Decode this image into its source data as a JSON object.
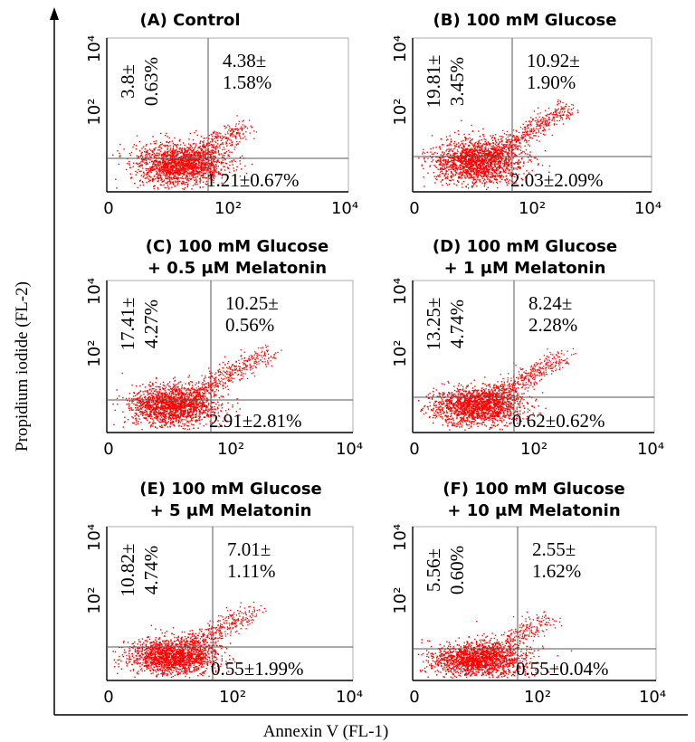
{
  "figure": {
    "ylabel": "Propidium iodide (FL-2)",
    "xlabel": "Annexin V (FL-1)"
  },
  "chart_data": [
    {
      "type": "scatter",
      "title": [
        "(A) Control"
      ],
      "x_ticks": [
        "0",
        "10²",
        "10⁴"
      ],
      "y_ticks": [
        "10²",
        "10⁴"
      ],
      "quadrants": {
        "upper_left": [
          "3.8±",
          "0.63%"
        ],
        "upper_right": [
          "4.38±",
          "1.58%"
        ],
        "lower_right": "1.21±0.67%"
      }
    },
    {
      "type": "scatter",
      "title": [
        "(B) 100 mM Glucose"
      ],
      "x_ticks": [
        "0",
        "10²",
        "10⁴"
      ],
      "y_ticks": [
        "10²",
        "10⁴"
      ],
      "quadrants": {
        "upper_left": [
          "19.81±",
          "3.45%"
        ],
        "upper_right": [
          "10.92±",
          "1.90%"
        ],
        "lower_right": "2.03±2.09%"
      }
    },
    {
      "type": "scatter",
      "title": [
        "(C) 100 mM Glucose",
        "+ 0.5 μM Melatonin"
      ],
      "x_ticks": [
        "0",
        "10²",
        "10⁴"
      ],
      "y_ticks": [
        "10²",
        "10⁴"
      ],
      "quadrants": {
        "upper_left": [
          "17.41±",
          "4.27%"
        ],
        "upper_right": [
          "10.25±",
          "0.56%"
        ],
        "lower_right": "2.91±2.81%"
      }
    },
    {
      "type": "scatter",
      "title": [
        "(D) 100 mM Glucose",
        "+ 1 μM Melatonin"
      ],
      "x_ticks": [
        "0",
        "10²",
        "10⁴"
      ],
      "y_ticks": [
        "10²",
        "10⁴"
      ],
      "quadrants": {
        "upper_left": [
          "13.25±",
          "4.74%"
        ],
        "upper_right": [
          "8.24±",
          "2.28%"
        ],
        "lower_right": "0.62±0.62%"
      }
    },
    {
      "type": "scatter",
      "title": [
        "(E) 100 mM Glucose",
        "+ 5 μM Melatonin"
      ],
      "x_ticks": [
        "0",
        "10²",
        "10⁴"
      ],
      "y_ticks": [
        "10²",
        "10⁴"
      ],
      "quadrants": {
        "upper_left": [
          "10.82±",
          "4.74%"
        ],
        "upper_right": [
          "7.01±",
          "1.11%"
        ],
        "lower_right": "0.55±1.99%"
      }
    },
    {
      "type": "scatter",
      "title": [
        "(F) 100 mM Glucose",
        "+ 10 μM Melatonin"
      ],
      "x_ticks": [
        "0",
        "10²",
        "10⁴"
      ],
      "y_ticks": [
        "10²",
        "10⁴"
      ],
      "quadrants": {
        "upper_left": [
          "5.56±",
          "0.60%"
        ],
        "upper_right": [
          "2.55±",
          "1.62%"
        ],
        "lower_right": "0.55±0.04%"
      }
    }
  ],
  "colors": {
    "dots": "#ff0000",
    "axis": "#000000",
    "quadrant_lines": "#555555"
  }
}
